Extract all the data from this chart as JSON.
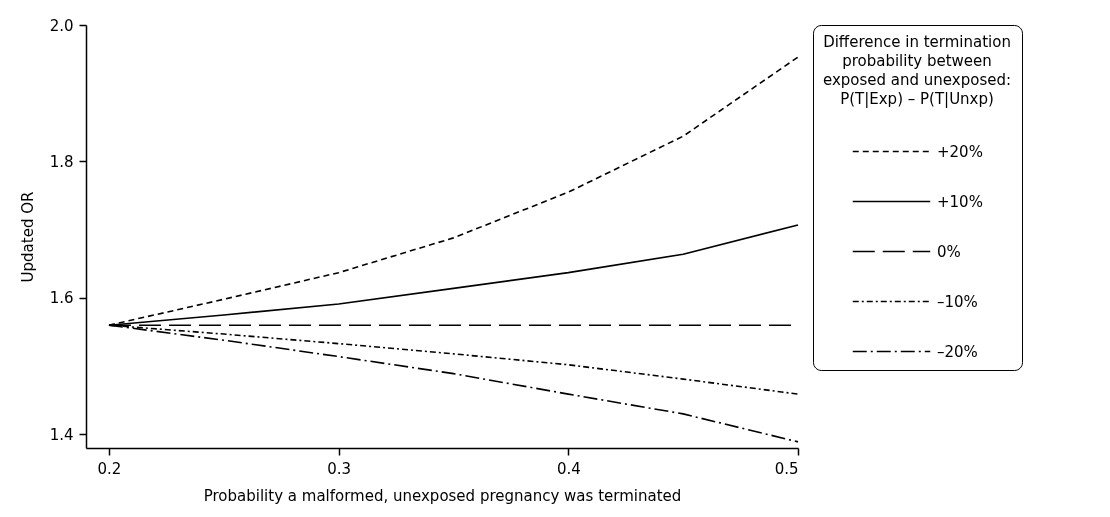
{
  "chart_data": {
    "type": "line",
    "xlabel": "Probability a malformed, unexposed pregnancy was terminated",
    "ylabel": "Updated OR",
    "legend_title": "Difference in termination\nprobability between\nexposed and unexposed:\nP(T|Exp) – P(T|Unxp)",
    "x": [
      0.2,
      0.25,
      0.3,
      0.35,
      0.4,
      0.45,
      0.5
    ],
    "series": [
      {
        "name": "+20%",
        "color": "#000000",
        "line_style": "dashed",
        "values": [
          1.56,
          1.598,
          1.637,
          1.688,
          1.755,
          1.837,
          1.953
        ]
      },
      {
        "name": "+10%",
        "color": "#000000",
        "line_style": "solid",
        "values": [
          1.56,
          1.575,
          1.591,
          1.614,
          1.637,
          1.664,
          1.707
        ]
      },
      {
        "name": "0%",
        "color": "#000000",
        "line_style": "longdash",
        "values": [
          1.56,
          1.56,
          1.56,
          1.56,
          1.56,
          1.56,
          1.56
        ]
      },
      {
        "name": "–10%",
        "color": "#000000",
        "line_style": "dashdotdot",
        "values": [
          1.56,
          1.547,
          1.533,
          1.518,
          1.502,
          1.481,
          1.459
        ]
      },
      {
        "name": "–20%",
        "color": "#000000",
        "line_style": "dashdot",
        "values": [
          1.56,
          1.538,
          1.514,
          1.489,
          1.459,
          1.43,
          1.389
        ]
      }
    ],
    "xlim": [
      0.19,
      0.5
    ],
    "xticks": [
      0.2,
      0.3,
      0.4,
      0.5
    ],
    "ylim": [
      1.38,
      2.0
    ],
    "yticks": [
      1.4,
      1.6,
      1.8,
      {
        "value": 2,
        "label": "2.0"
      }
    ],
    "grid": false,
    "legend": "right",
    "marker": "none"
  }
}
